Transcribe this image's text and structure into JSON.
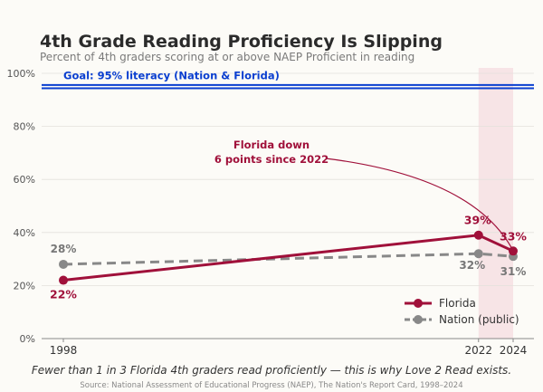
{
  "chart_data": {
    "type": "line",
    "title": "4th Grade Reading Proficiency Is Slipping",
    "subtitle": "Percent of 4th graders scoring at or above NAEP Proficient in reading",
    "x": [
      1998,
      2022,
      2024
    ],
    "x_tick_labels": [
      "1998",
      "2022",
      "2024"
    ],
    "y_tick_labels": [
      "0%",
      "20%",
      "40%",
      "60%",
      "80%",
      "100%"
    ],
    "y_ticks": [
      0,
      20,
      40,
      60,
      80,
      100
    ],
    "ylim": [
      0,
      100
    ],
    "xlim": [
      1996,
      2025.5
    ],
    "grid": true,
    "series": [
      {
        "name": "Florida",
        "values": [
          22,
          39,
          33
        ],
        "point_labels": [
          "22%",
          "39%",
          "33%"
        ],
        "color": "#a0103a",
        "style": "solid"
      },
      {
        "name": "Nation (public)",
        "values": [
          28,
          32,
          31
        ],
        "point_labels": [
          "28%",
          "32%",
          "31%"
        ],
        "color": "#888888",
        "style": "dashed"
      }
    ],
    "goal": {
      "label": "Goal: 95% literacy (Nation & Florida)",
      "value": 95,
      "color": "#0a3fd0"
    },
    "highlight_span": [
      2022,
      2024
    ],
    "highlight_color": "#f7e4e6",
    "annotation": {
      "lines": [
        "Florida down",
        "6 points since 2022"
      ],
      "points_to_x": 2024,
      "points_to_y": 33
    },
    "legend_position": "lower-right",
    "footnote": "Fewer than 1 in 3 Florida 4th graders read proficiently — this is why Love 2 Read exists.",
    "source": "Source: National Assessment of Educational Progress (NAEP), The Nation's Report Card, 1998–2024"
  }
}
